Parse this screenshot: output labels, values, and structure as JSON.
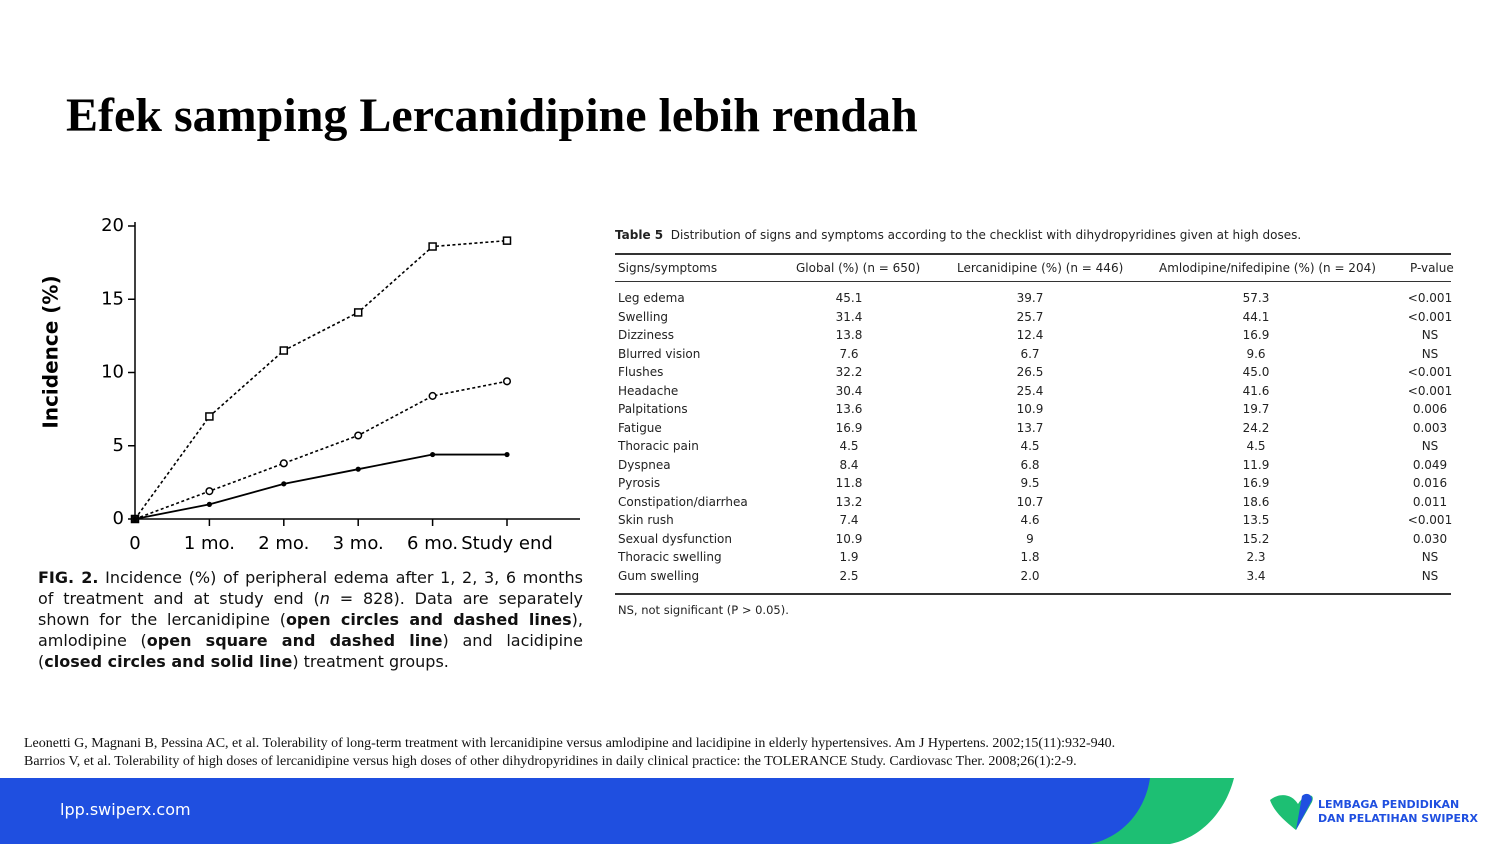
{
  "title": "Efek samping Lercanidipine lebih rendah",
  "chart_data": {
    "type": "line",
    "y_label": "Incidence (%)",
    "categories": [
      "0",
      "1 mo.",
      "2 mo.",
      "3 mo.",
      "6 mo.",
      "Study end"
    ],
    "series": [
      {
        "color": "#000000",
        "marker": "square",
        "dashed": true,
        "values": [
          0,
          7.0,
          11.5,
          14.1,
          18.6,
          19.0
        ]
      },
      {
        "color": "#000000",
        "marker": "open-circle",
        "dashed": true,
        "values": [
          0,
          1.9,
          3.8,
          5.7,
          8.4,
          9.4
        ]
      },
      {
        "color": "#000000",
        "marker": "closed-circle",
        "dashed": false,
        "values": [
          0,
          1.0,
          2.4,
          3.4,
          4.4,
          4.4
        ]
      }
    ],
    "ylim": [
      0,
      20
    ],
    "yticks": [
      0,
      5,
      10,
      15,
      20
    ]
  },
  "caption": [
    "FIG. 2.",
    " Incidence (%) of peripheral edema after 1, 2, 3, 6 months of treatment and at study end (",
    "n",
    " = 828). Data are separately shown for the lercanidipine (",
    "open circles and dashed lines",
    "), amlodipine (",
    "open square and dashed line",
    ") and lacidipine (",
    "closed circles and solid line",
    ") treatment groups."
  ],
  "table": {
    "label": "Table 5",
    "caption": "Distribution of signs and symptoms according to the checklist with dihydropyridines given at high doses.",
    "header": [
      "Signs/symptoms",
      "Global (%) (n = 650)",
      "Lercanidipine (%) (n = 446)",
      "Amlodipine/nifedipine (%) (n = 204)",
      "P-value"
    ],
    "rows": [
      [
        "Leg edema",
        "45.1",
        "39.7",
        "57.3",
        "<0.001"
      ],
      [
        "Swelling",
        "31.4",
        "25.7",
        "44.1",
        "<0.001"
      ],
      [
        "Dizziness",
        "13.8",
        "12.4",
        "16.9",
        "NS"
      ],
      [
        "Blurred vision",
        "7.6",
        "6.7",
        "9.6",
        "NS"
      ],
      [
        "Flushes",
        "32.2",
        "26.5",
        "45.0",
        "<0.001"
      ],
      [
        "Headache",
        "30.4",
        "25.4",
        "41.6",
        "<0.001"
      ],
      [
        "Palpitations",
        "13.6",
        "10.9",
        "19.7",
        "0.006"
      ],
      [
        "Fatigue",
        "16.9",
        "13.7",
        "24.2",
        "0.003"
      ],
      [
        "Thoracic pain",
        "4.5",
        "4.5",
        "4.5",
        "NS"
      ],
      [
        "Dyspnea",
        "8.4",
        "6.8",
        "11.9",
        "0.049"
      ],
      [
        "Pyrosis",
        "11.8",
        "9.5",
        "16.9",
        "0.016"
      ],
      [
        "Constipation/diarrhea",
        "13.2",
        "10.7",
        "18.6",
        "0.011"
      ],
      [
        "Skin rush",
        "7.4",
        "4.6",
        "13.5",
        "<0.001"
      ],
      [
        "Sexual dysfunction",
        "10.9",
        "9",
        "15.2",
        "0.030"
      ],
      [
        "Thoracic swelling",
        "1.9",
        "1.8",
        "2.3",
        "NS"
      ],
      [
        "Gum swelling",
        "2.5",
        "2.0",
        "3.4",
        "NS"
      ]
    ],
    "footnote": "NS, not significant (P > 0.05)."
  },
  "references": [
    "Leonetti G, Magnani B, Pessina AC, et al. Tolerability of long-term treatment with lercanidipine versus amlodipine and lacidipine in elderly hypertensives. Am J Hypertens. 2002;15(11):932-940.",
    "Barrios V, et al. Tolerability of high doses of lercanidipine versus high doses of other dihydropyridines in daily clinical practice: the TOLERANCE Study. Cardiovasc Ther. 2008;26(1):2-9."
  ],
  "footer": {
    "url": "lpp.swiperx.com",
    "logo": [
      "LEMBAGA PENDIDIKAN",
      "DAN PELATIHAN SWIPERX"
    ]
  }
}
